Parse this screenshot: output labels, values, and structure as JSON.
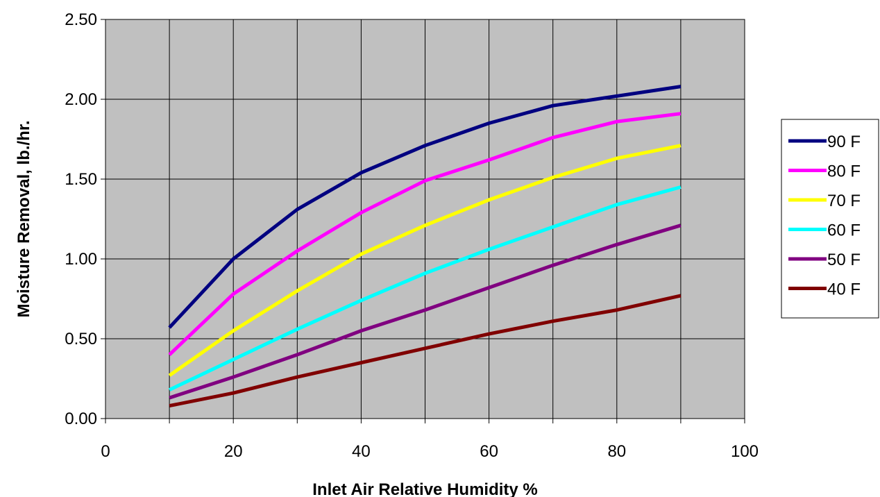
{
  "chart_data": {
    "type": "line",
    "xlabel": "Inlet Air Relative Humidity %",
    "ylabel": "Moisture Removal, lb./hr.",
    "xlim": [
      0,
      100
    ],
    "ylim": [
      0,
      2.5
    ],
    "x_ticks": [
      "0",
      "20",
      "40",
      "60",
      "80",
      "100"
    ],
    "y_ticks": [
      "0.00",
      "0.50",
      "1.00",
      "1.50",
      "2.00",
      "2.50"
    ],
    "grid": true,
    "legend_position": "right",
    "x": [
      10,
      20,
      30,
      40,
      50,
      60,
      70,
      80,
      90
    ],
    "series": [
      {
        "name": "90 F",
        "color": "#000080",
        "values": [
          0.57,
          1.0,
          1.31,
          1.54,
          1.71,
          1.85,
          1.96,
          2.02,
          2.08
        ]
      },
      {
        "name": "80 F",
        "color": "#FF00FF",
        "values": [
          0.4,
          0.78,
          1.05,
          1.29,
          1.49,
          1.62,
          1.76,
          1.86,
          1.91
        ]
      },
      {
        "name": "70 F",
        "color": "#FFFF00",
        "values": [
          0.27,
          0.55,
          0.8,
          1.03,
          1.21,
          1.37,
          1.51,
          1.63,
          1.71
        ]
      },
      {
        "name": "60 F",
        "color": "#00FFFF",
        "values": [
          0.18,
          0.37,
          0.56,
          0.74,
          0.91,
          1.06,
          1.2,
          1.34,
          1.45
        ]
      },
      {
        "name": "50 F",
        "color": "#800080",
        "values": [
          0.13,
          0.26,
          0.4,
          0.55,
          0.68,
          0.82,
          0.96,
          1.09,
          1.21
        ]
      },
      {
        "name": "40 F",
        "color": "#800000",
        "values": [
          0.08,
          0.16,
          0.26,
          0.35,
          0.44,
          0.53,
          0.61,
          0.68,
          0.77
        ]
      }
    ]
  }
}
